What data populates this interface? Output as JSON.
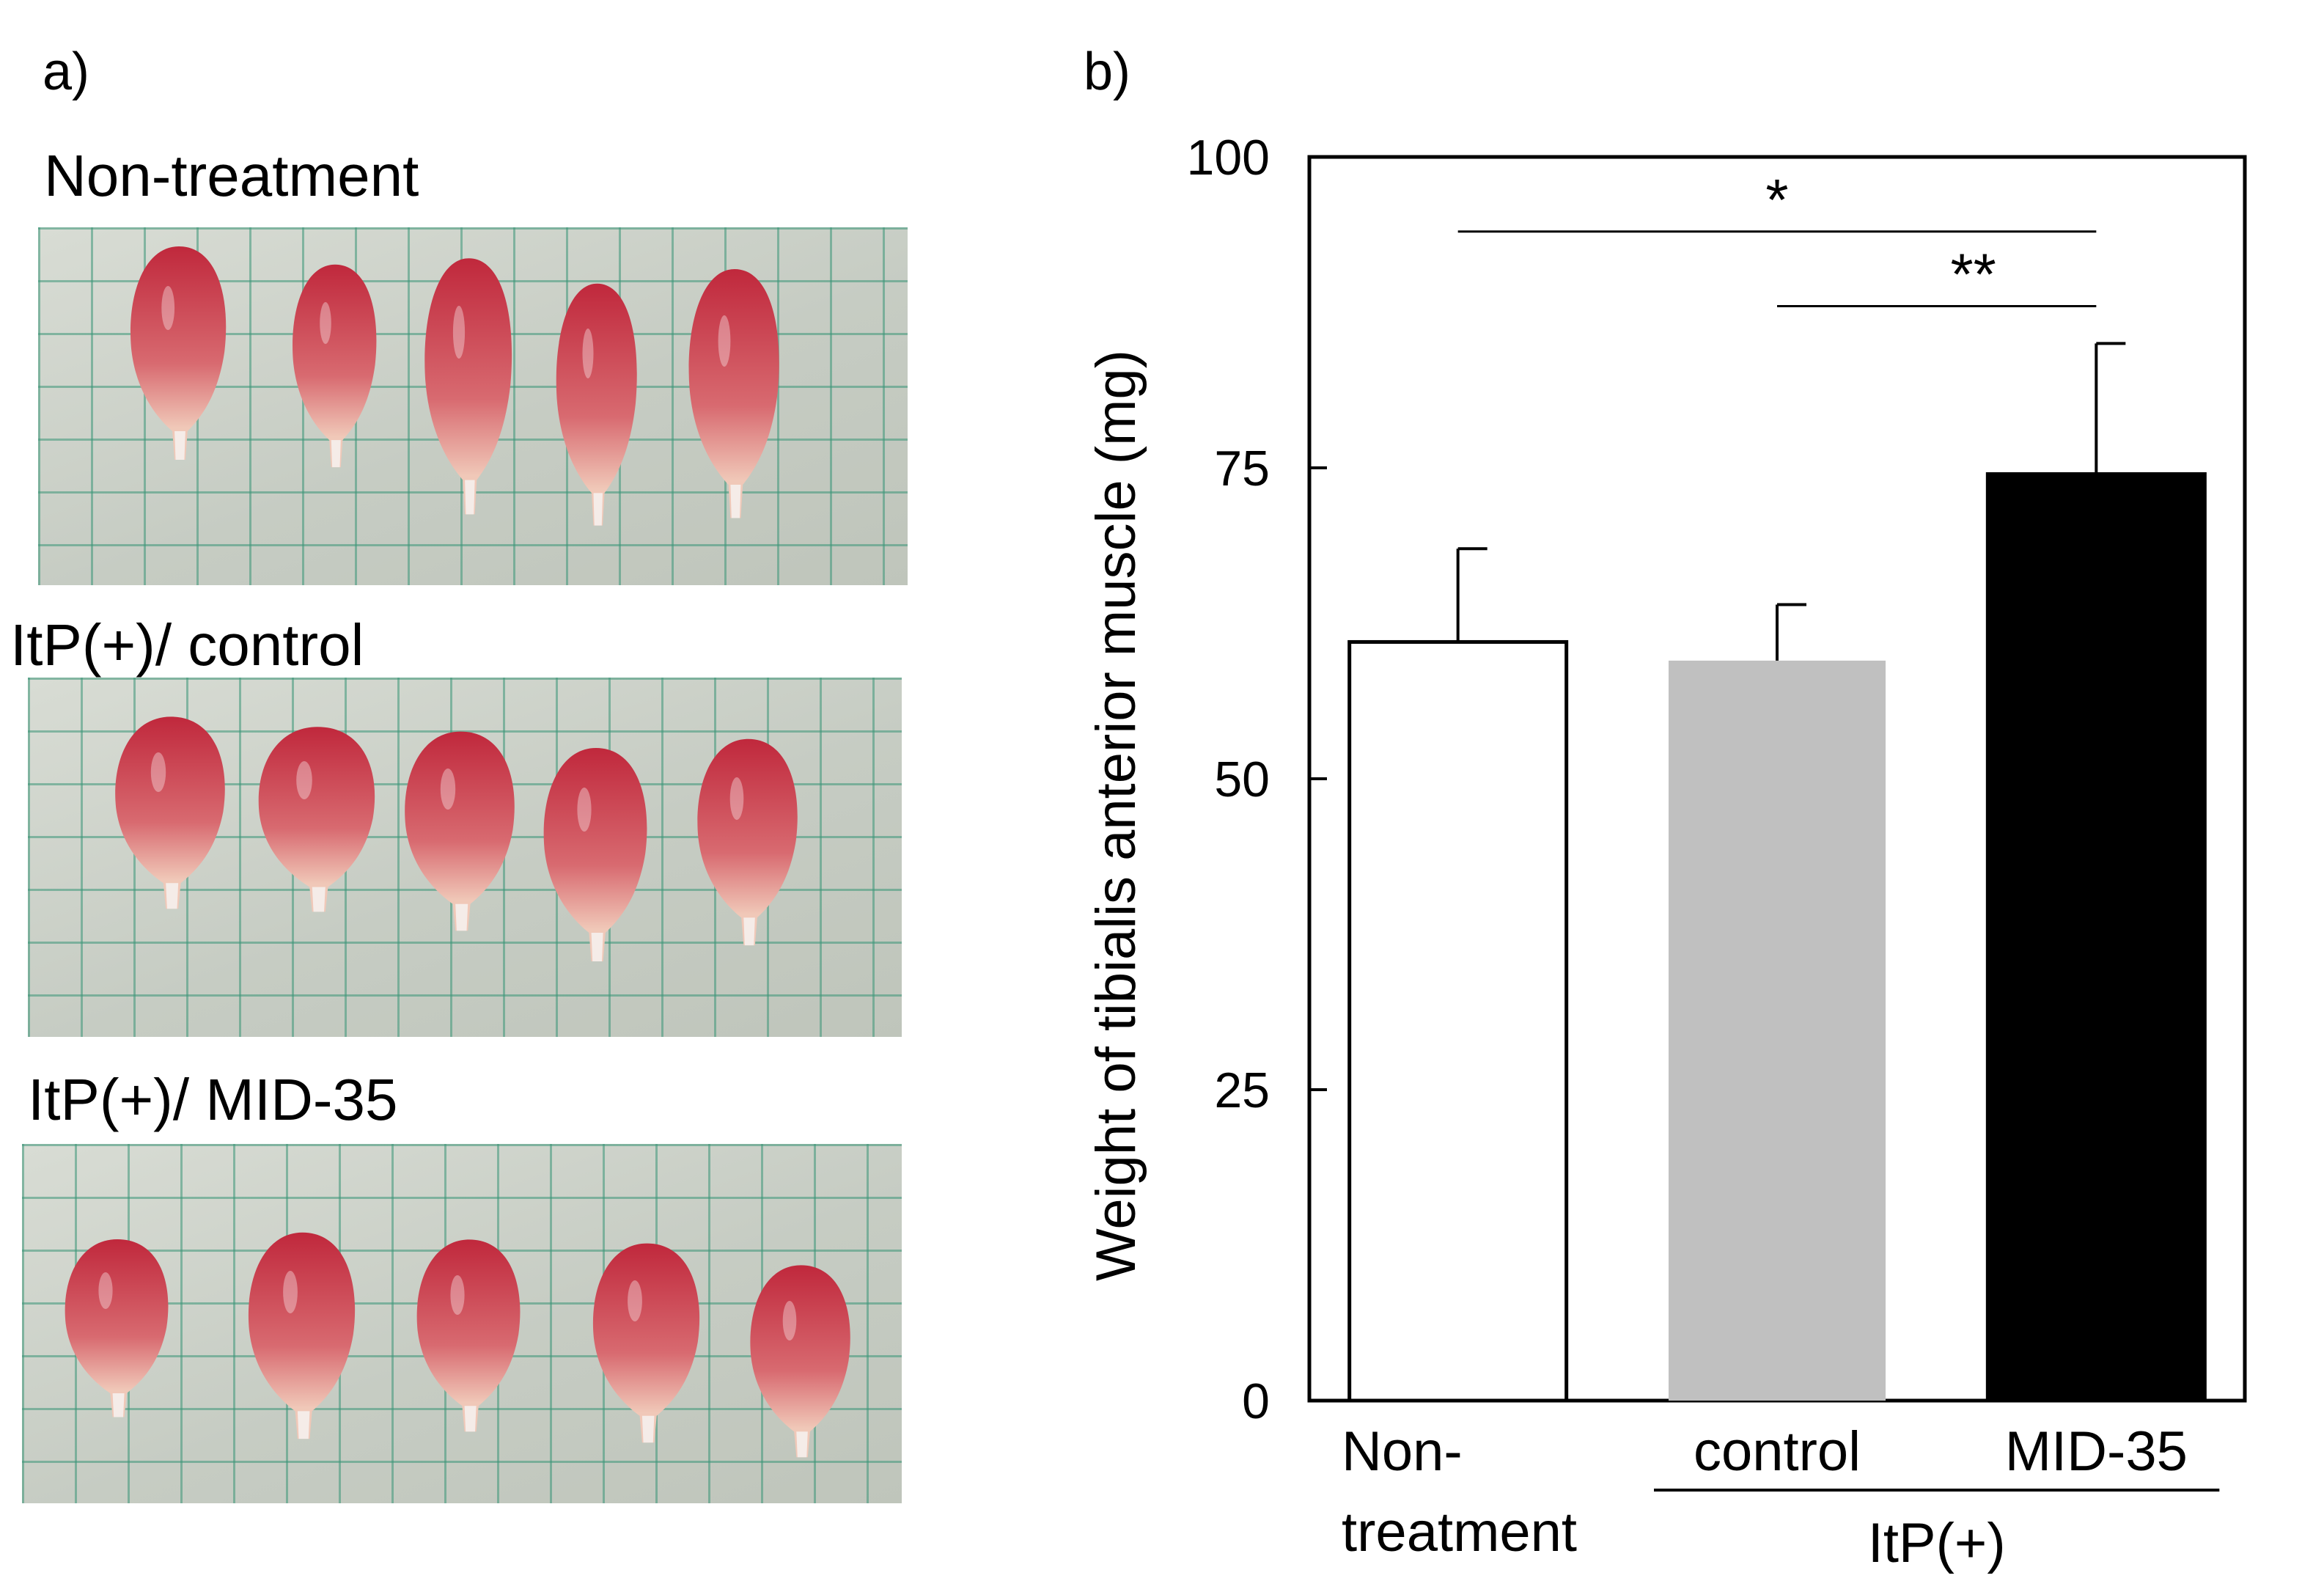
{
  "panel_a": {
    "letter": "a)",
    "groups": [
      {
        "title": "Non-treatment",
        "muscle_count": 5
      },
      {
        "title": "ItP(+)/ control",
        "muscle_count": 5
      },
      {
        "title": "ItP(+)/ MID-35",
        "muscle_count": 5
      }
    ],
    "colors": {
      "muscle_dark": "#c0283c",
      "muscle_light": "#f0c8b8",
      "tendon": "#f5ece8"
    }
  },
  "panel_b": {
    "letter": "b)"
  },
  "chart_data": {
    "type": "bar",
    "ylabel": "Weight of tibialis anterior muscle (mg)",
    "xlabel": "",
    "ylim": [
      0,
      100
    ],
    "yticks": [
      0,
      25,
      50,
      75,
      100
    ],
    "categories": [
      "Non-\ntreatment",
      "control",
      "MID-35"
    ],
    "category_lines": [
      [
        "Non-",
        "treatment"
      ],
      [
        "control"
      ],
      [
        "MID-35"
      ]
    ],
    "values": [
      61,
      59.5,
      74.5
    ],
    "errors": [
      7.5,
      4.5,
      10.5
    ],
    "bar_colors": [
      "#ffffff",
      "#c0c0c0",
      "#000000"
    ],
    "group_label": {
      "text": "ItP(+)",
      "spans": [
        "control",
        "MID-35"
      ]
    },
    "significance": [
      {
        "from": "Non-\ntreatment",
        "to": "MID-35",
        "label": "*",
        "y": 94
      },
      {
        "from": "control",
        "to": "MID-35",
        "label": "**",
        "y": 88
      }
    ],
    "grid": false
  }
}
